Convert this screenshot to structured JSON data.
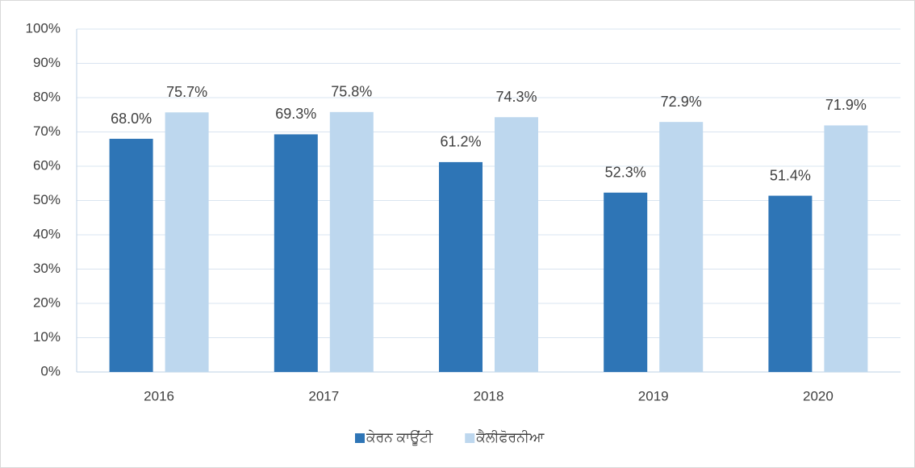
{
  "chart_data": {
    "type": "bar",
    "categories": [
      "2016",
      "2017",
      "2018",
      "2019",
      "2020"
    ],
    "series": [
      {
        "name": "ਕੇਰਨ ਕਾਊਂਟੀ",
        "color": "#2e75b6",
        "values": [
          68.0,
          69.3,
          61.2,
          52.3,
          51.4
        ],
        "value_labels": [
          "68.0%",
          "69.3%",
          "61.2%",
          "52.3%",
          "51.4%"
        ]
      },
      {
        "name": "ਕੈਲੀਫੋਰਨੀਆ",
        "color": "#bdd7ee",
        "values": [
          75.7,
          75.8,
          74.3,
          72.9,
          71.9
        ],
        "value_labels": [
          "75.7%",
          "75.8%",
          "74.3%",
          "72.9%",
          "71.9%"
        ]
      }
    ],
    "ylim": [
      0,
      100
    ],
    "yticks": [
      {
        "value": 0,
        "label": "0%"
      },
      {
        "value": 10,
        "label": "10%"
      },
      {
        "value": 20,
        "label": "20%"
      },
      {
        "value": 30,
        "label": "30%"
      },
      {
        "value": 40,
        "label": "40%"
      },
      {
        "value": 50,
        "label": "50%"
      },
      {
        "value": 60,
        "label": "60%"
      },
      {
        "value": 70,
        "label": "70%"
      },
      {
        "value": 80,
        "label": "80%"
      },
      {
        "value": 90,
        "label": "90%"
      },
      {
        "value": 100,
        "label": "100%"
      }
    ],
    "grid": true,
    "legend": "bottom"
  }
}
